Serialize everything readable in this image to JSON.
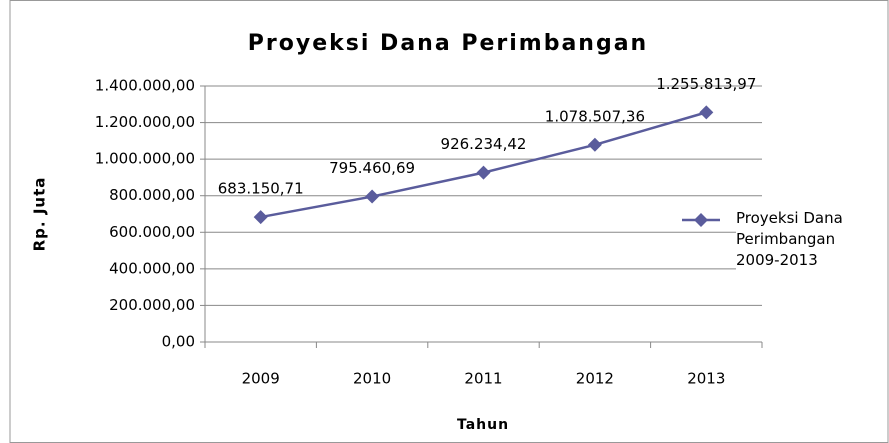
{
  "chart_data": {
    "type": "line",
    "title": "Proyeksi Dana Perimbangan",
    "x_label": "Tahun",
    "y_label": "Rp. Juta",
    "categories": [
      "2009",
      "2010",
      "2011",
      "2012",
      "2013"
    ],
    "series": [
      {
        "name": "Proyeksi Dana Perimbangan 2009-2013",
        "color": "#5a5c9c",
        "values": [
          683150.71,
          795460.69,
          926234.42,
          1078507.36,
          1255813.97
        ],
        "value_labels": [
          "683.150,71",
          "795.460,69",
          "926.234,42",
          "1.078.507,36",
          "1.255.813,97"
        ]
      }
    ],
    "ylim": [
      0,
      1400000
    ],
    "yticks": [
      {
        "value": 0,
        "label": "0,00"
      },
      {
        "value": 200000,
        "label": "200.000,00"
      },
      {
        "value": 400000,
        "label": "400.000,00"
      },
      {
        "value": 600000,
        "label": "600.000,00"
      },
      {
        "value": 800000,
        "label": "800.000,00"
      },
      {
        "value": 1000000,
        "label": "1.000.000,00"
      },
      {
        "value": 1200000,
        "label": "1.200.000,00"
      },
      {
        "value": 1400000,
        "label": "1.400.000,00"
      }
    ],
    "grid": true,
    "legend": "right"
  }
}
